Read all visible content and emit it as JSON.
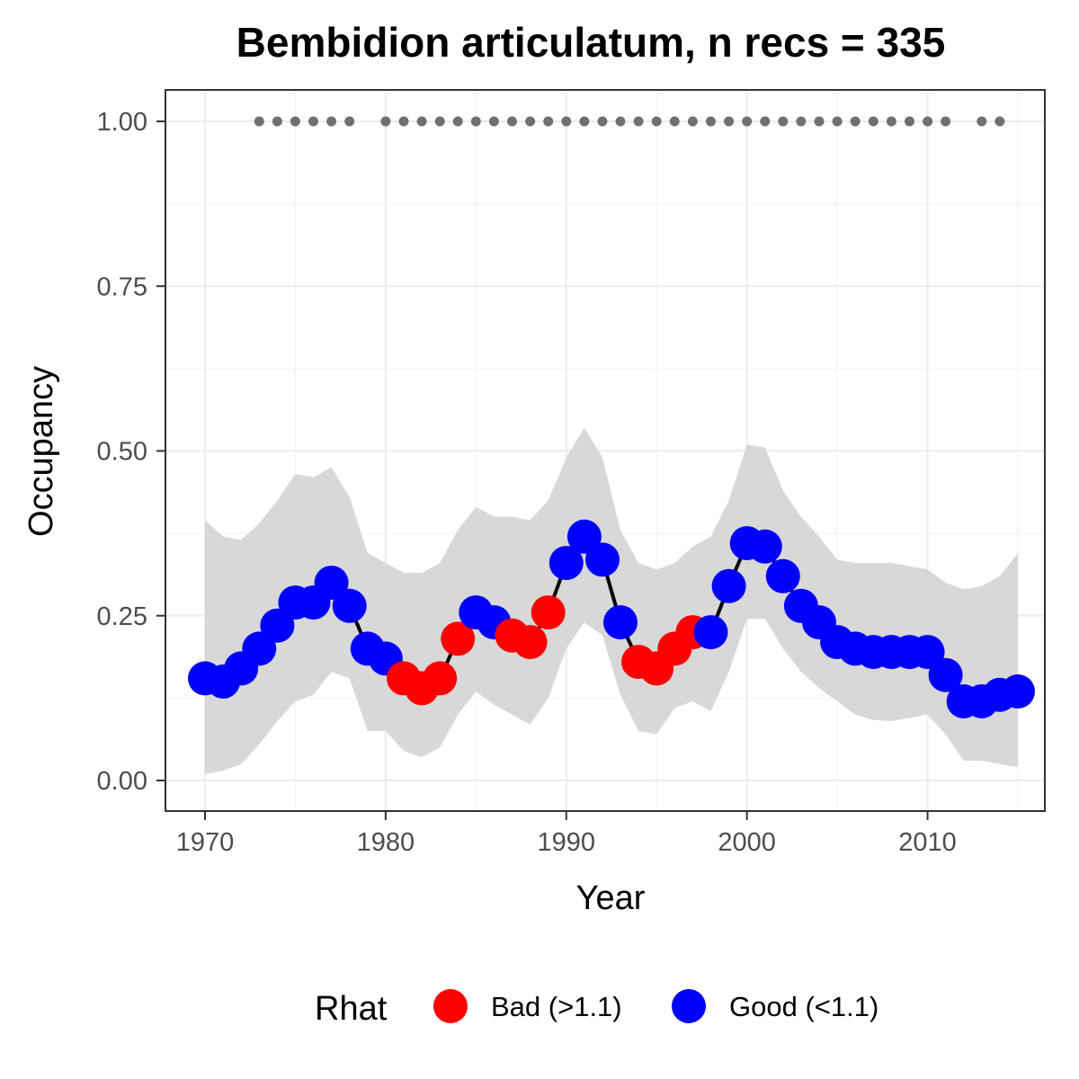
{
  "chart_data": {
    "type": "line",
    "title": "Bembidion articulatum, n recs = 335",
    "xlabel": "Year",
    "ylabel": "Occupancy",
    "xlim": [
      1967.8,
      1017.2
    ],
    "ylim": [
      -0.05,
      1.05
    ],
    "x_ticks": [
      1970,
      1980,
      1990,
      2000,
      2010
    ],
    "x_tick_labels": [
      "1970",
      "1980",
      "1990",
      "2000",
      "2010"
    ],
    "y_ticks": [
      0,
      0.25,
      0.5,
      0.75,
      1.0
    ],
    "y_tick_labels": [
      "0.00",
      "0.25",
      "0.50",
      "0.75",
      "1.00"
    ],
    "grid": true,
    "legend_position": "bottom",
    "colors": {
      "Bad": "#ff0000",
      "Good": "#0000ff",
      "ribbon": "#d6d6d6",
      "line": "#000000",
      "record_dots": "#707070"
    },
    "legend": {
      "title": "Rhat",
      "entries": [
        {
          "key": "Bad",
          "label": "Bad (>1.1)"
        },
        {
          "key": "Good",
          "label": "Good (<1.1)"
        }
      ]
    },
    "years": [
      1970,
      1971,
      1972,
      1973,
      1974,
      1975,
      1976,
      1977,
      1978,
      1979,
      1980,
      1981,
      1982,
      1983,
      1984,
      1985,
      1986,
      1987,
      1988,
      1989,
      1990,
      1991,
      1992,
      1993,
      1994,
      1995,
      1996,
      1997,
      1998,
      1999,
      2000,
      2001,
      2002,
      2003,
      2004,
      2005,
      2006,
      2007,
      2008,
      2009,
      2010,
      2011,
      2012,
      2013,
      2014,
      2015
    ],
    "occupancy": [
      0.155,
      0.15,
      0.17,
      0.2,
      0.235,
      0.27,
      0.27,
      0.3,
      0.265,
      0.2,
      0.185,
      0.155,
      0.14,
      0.155,
      0.215,
      0.255,
      0.24,
      0.22,
      0.21,
      0.255,
      0.33,
      0.37,
      0.335,
      0.24,
      0.18,
      0.17,
      0.2,
      0.225,
      0.225,
      0.295,
      0.36,
      0.355,
      0.31,
      0.265,
      0.24,
      0.21,
      0.2,
      0.195,
      0.195,
      0.195,
      0.195,
      0.16,
      0.12,
      0.12,
      0.13,
      0.135
    ],
    "lower": [
      0.01,
      0.015,
      0.025,
      0.055,
      0.09,
      0.12,
      0.13,
      0.165,
      0.155,
      0.075,
      0.075,
      0.045,
      0.035,
      0.05,
      0.1,
      0.135,
      0.115,
      0.1,
      0.085,
      0.125,
      0.2,
      0.24,
      0.22,
      0.13,
      0.075,
      0.07,
      0.11,
      0.12,
      0.105,
      0.165,
      0.245,
      0.245,
      0.2,
      0.165,
      0.14,
      0.12,
      0.1,
      0.092,
      0.09,
      0.095,
      0.1,
      0.07,
      0.03,
      0.03,
      0.025,
      0.02
    ],
    "upper": [
      0.395,
      0.37,
      0.365,
      0.39,
      0.425,
      0.465,
      0.46,
      0.475,
      0.43,
      0.345,
      0.33,
      0.315,
      0.315,
      0.33,
      0.38,
      0.415,
      0.4,
      0.4,
      0.395,
      0.425,
      0.49,
      0.535,
      0.49,
      0.38,
      0.33,
      0.32,
      0.33,
      0.355,
      0.37,
      0.425,
      0.51,
      0.505,
      0.44,
      0.4,
      0.37,
      0.335,
      0.33,
      0.33,
      0.33,
      0.325,
      0.32,
      0.3,
      0.29,
      0.295,
      0.31,
      0.345
    ],
    "rhat": [
      "Good",
      "Good",
      "Good",
      "Good",
      "Good",
      "Good",
      "Good",
      "Good",
      "Good",
      "Good",
      "Good",
      "Bad",
      "Bad",
      "Bad",
      "Bad",
      "Good",
      "Good",
      "Bad",
      "Bad",
      "Bad",
      "Good",
      "Good",
      "Good",
      "Good",
      "Bad",
      "Bad",
      "Bad",
      "Bad",
      "Good",
      "Good",
      "Good",
      "Good",
      "Good",
      "Good",
      "Good",
      "Good",
      "Good",
      "Good",
      "Good",
      "Good",
      "Good",
      "Good",
      "Good",
      "Good",
      "Good",
      "Good"
    ],
    "record_years": [
      1973,
      1974,
      1975,
      1976,
      1977,
      1978,
      1980,
      1981,
      1982,
      1983,
      1984,
      1985,
      1986,
      1987,
      1988,
      1989,
      1990,
      1991,
      1992,
      1993,
      1994,
      1995,
      1996,
      1997,
      1998,
      1999,
      2000,
      2001,
      2002,
      2003,
      2004,
      2005,
      2006,
      2007,
      2008,
      2009,
      2010,
      2011,
      2013,
      2014
    ],
    "record_y": 1.0
  }
}
